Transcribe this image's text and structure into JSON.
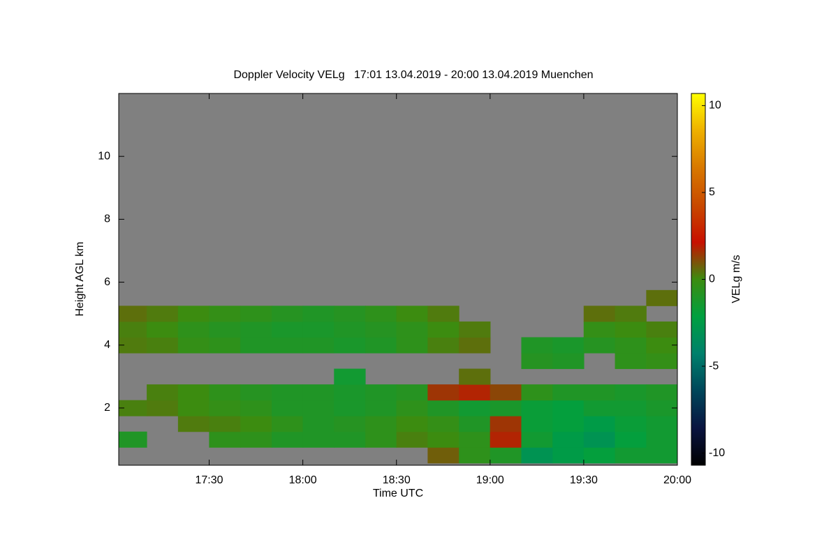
{
  "chart_data": {
    "type": "heatmap",
    "title": "Doppler Velocity VELg   17:01 13.04.2019 - 20:00 13.04.2019 Muenchen",
    "x_label": "Time UTC",
    "y_label": "Height AGL km",
    "colorbar_label": "VELg m/s",
    "x": [
      17.083,
      17.25,
      17.417,
      17.583,
      17.75,
      17.917,
      18.083,
      18.25,
      18.417,
      18.583,
      18.75,
      18.917,
      19.083,
      19.25,
      19.417,
      19.583,
      19.75,
      19.917
    ],
    "y": [
      0.5,
      1.0,
      1.5,
      2.0,
      2.5,
      3.0,
      3.5,
      4.0,
      4.5,
      5.0,
      5.5
    ],
    "values": [
      [
        null,
        null,
        null,
        null,
        null,
        null,
        null,
        null,
        null,
        null,
        0.8,
        -0.5,
        -1,
        -3,
        -2.5,
        -2,
        -1.5,
        -1.5
      ],
      [
        -1,
        null,
        null,
        -0.5,
        -0.5,
        -1,
        -1,
        -1,
        -0.5,
        0.2,
        0,
        -0.5,
        1.8,
        -1.5,
        -2.5,
        -3,
        -2,
        -1.5
      ],
      [
        null,
        null,
        0.3,
        0.2,
        0,
        -0.5,
        -1,
        -0.8,
        -0.5,
        0,
        -0.3,
        -1,
        1.5,
        -1.8,
        -2,
        -2.5,
        -1.8,
        -1.5
      ],
      [
        0.2,
        0.3,
        0,
        -0.3,
        -0.5,
        -1,
        -1,
        -1.2,
        -1,
        -0.5,
        -1,
        -1.5,
        -1.2,
        -1.8,
        -2,
        -1.5,
        -1.5,
        -1.2
      ],
      [
        null,
        0.2,
        0,
        -0.5,
        -0.8,
        -1,
        -1,
        -1.2,
        -1,
        -0.8,
        1.5,
        1.8,
        1.2,
        -0.5,
        -1,
        -1,
        -1.2,
        -1
      ],
      [
        null,
        null,
        null,
        null,
        null,
        null,
        null,
        -1.5,
        null,
        null,
        null,
        0.5,
        null,
        null,
        null,
        null,
        null,
        null
      ],
      [
        null,
        null,
        null,
        null,
        null,
        null,
        null,
        null,
        null,
        null,
        null,
        null,
        null,
        -0.8,
        -1,
        null,
        -0.5,
        -0.3
      ],
      [
        0.3,
        0.2,
        -0.3,
        -0.5,
        -1,
        -1,
        -1,
        -1.2,
        -1,
        -0.5,
        0.2,
        0.5,
        null,
        -1,
        -1.2,
        -0.8,
        -0.5,
        0
      ],
      [
        0.2,
        0,
        -0.5,
        -0.8,
        -1,
        -1.2,
        -1.2,
        -1,
        -0.8,
        -0.5,
        0,
        0.3,
        null,
        null,
        null,
        -0.3,
        0,
        0.2
      ],
      [
        0.5,
        0.3,
        0,
        -0.3,
        -0.5,
        -0.8,
        -1,
        -0.8,
        -0.5,
        0,
        0.3,
        null,
        null,
        null,
        null,
        0.5,
        0.3,
        null
      ],
      [
        null,
        null,
        null,
        null,
        null,
        null,
        null,
        null,
        null,
        null,
        null,
        null,
        null,
        null,
        null,
        null,
        null,
        0.5
      ]
    ],
    "xlim": [
      17.017,
      20.0
    ],
    "xticks": [
      {
        "value": 17.5,
        "label": "17:30"
      },
      {
        "value": 18.0,
        "label": "18:00"
      },
      {
        "value": 18.5,
        "label": "18:30"
      },
      {
        "value": 19.0,
        "label": "19:00"
      },
      {
        "value": 19.5,
        "label": "19:30"
      },
      {
        "value": 20.0,
        "label": "20:00"
      }
    ],
    "ylim": [
      0.18,
      12.0
    ],
    "yticks": [
      2,
      4,
      6,
      8,
      10
    ],
    "zlim": [
      -10.7,
      10.7
    ],
    "zticks": [
      -10,
      -5,
      0,
      5,
      10
    ],
    "background_color": "#808080",
    "colormap": [
      "#000000",
      "#0a1440",
      "#00465a",
      "#00806c",
      "#00a040",
      "#3c8c10",
      "#c81000",
      "#c84a00",
      "#d87800",
      "#eeb000",
      "#ffff00"
    ]
  }
}
